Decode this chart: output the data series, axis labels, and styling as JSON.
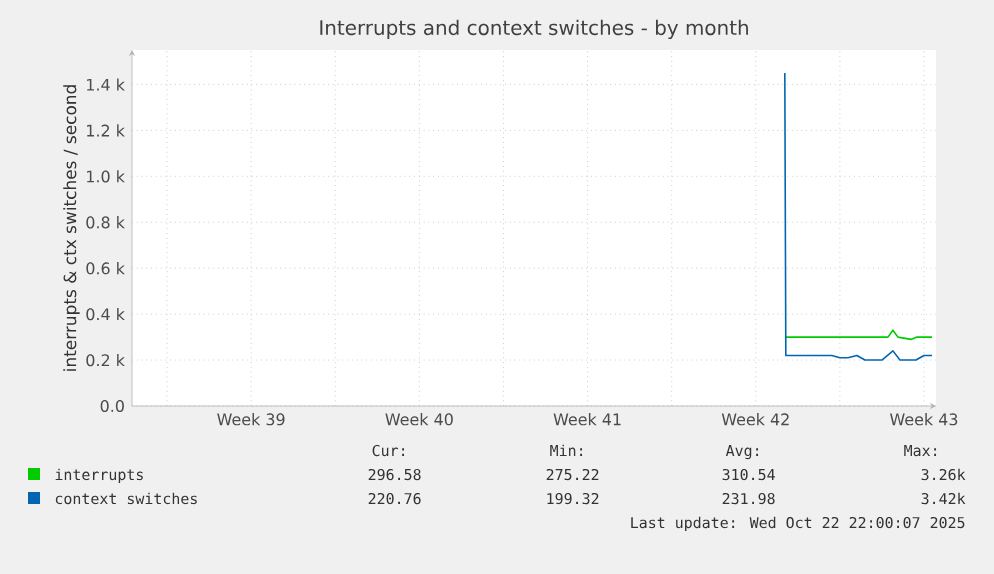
{
  "chart_data": {
    "type": "line",
    "title": "Interrupts and context switches - by month",
    "ylabel": "interrupts & ctx switches / second",
    "xlim": [
      "2025-09-19T11:00",
      "2025-10-22T22:00"
    ],
    "ylim": [
      0,
      1550
    ],
    "xticks": [
      {
        "value": "2025-09-20T22:00",
        "label": null
      },
      {
        "value": "2025-09-24T10:00",
        "label": "Week 39"
      },
      {
        "value": "2025-09-27T22:00",
        "label": null
      },
      {
        "value": "2025-10-01T10:00",
        "label": "Week 40"
      },
      {
        "value": "2025-10-04T22:00",
        "label": null
      },
      {
        "value": "2025-10-08T10:00",
        "label": "Week 41"
      },
      {
        "value": "2025-10-11T22:00",
        "label": null
      },
      {
        "value": "2025-10-15T10:00",
        "label": "Week 42"
      },
      {
        "value": "2025-10-18T22:00",
        "label": null
      },
      {
        "value": "2025-10-22T10:00",
        "label": "Week 43"
      }
    ],
    "yticks": [
      {
        "value": 0,
        "label": "0.0"
      },
      {
        "value": 200,
        "label": "0.2 k"
      },
      {
        "value": 400,
        "label": "0.4 k"
      },
      {
        "value": 600,
        "label": "0.6 k"
      },
      {
        "value": 800,
        "label": "0.8 k"
      },
      {
        "value": 1000,
        "label": "1.0 k"
      },
      {
        "value": 1200,
        "label": "1.2 k"
      },
      {
        "value": 1400,
        "label": "1.4 k"
      }
    ],
    "grid": true,
    "legend": "bottom",
    "series": [
      {
        "name": "interrupts",
        "color": "#00cc00",
        "x": [
          "2025-10-16T16:00",
          "2025-10-17T12:00",
          "2025-10-18T14:00",
          "2025-10-19T15:00",
          "2025-10-20T08:00",
          "2025-10-20T22:00",
          "2025-10-21T03:00",
          "2025-10-21T08:00",
          "2025-10-21T21:00",
          "2025-10-22T03:00",
          "2025-10-22T18:00"
        ],
        "values": [
          300,
          300,
          300,
          300,
          300,
          300,
          330,
          300,
          290,
          300,
          300
        ]
      },
      {
        "name": "context switches",
        "color": "#0066b3",
        "x": [
          "2025-10-16T15:00",
          "2025-10-16T16:00",
          "2025-10-17T12:00",
          "2025-10-18T14:00",
          "2025-10-18T22:00",
          "2025-10-19T06:00",
          "2025-10-19T15:00",
          "2025-10-19T23:00",
          "2025-10-20T16:00",
          "2025-10-21T03:00",
          "2025-10-21T10:00",
          "2025-10-22T02:00",
          "2025-10-22T10:00",
          "2025-10-22T18:00"
        ],
        "values": [
          1450,
          220,
          220,
          220,
          210,
          210,
          220,
          200,
          200,
          240,
          200,
          200,
          220,
          220
        ]
      }
    ],
    "annotations": [
      "Cur:",
      "Min:",
      "Avg:",
      "Max:",
      "296.58",
      "275.22",
      "310.54",
      "3.26k",
      "220.76",
      "199.32",
      "231.98",
      "3.42k",
      "Last update: Wed Oct 22 22:00:07 2025"
    ]
  }
}
